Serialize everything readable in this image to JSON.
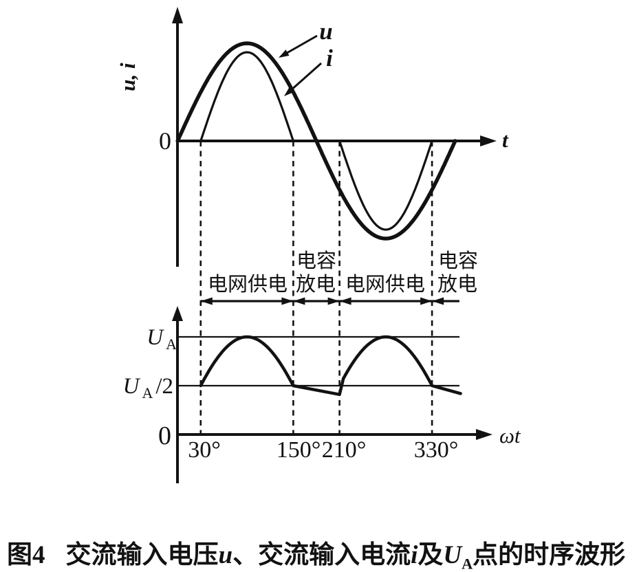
{
  "figure": {
    "background": "#ffffff",
    "ink_color": "#121212"
  },
  "top_chart": {
    "y_axis_label": "u, i",
    "origin_label": "0",
    "x_axis_label": "t",
    "curve_labels": {
      "u": "u",
      "i": "i"
    }
  },
  "regions": [
    {
      "label_line1": "电网供电",
      "label_line2": "",
      "from_deg": 30,
      "to_deg": 150,
      "arrows": "both"
    },
    {
      "label_line1": "电容",
      "label_line2": "放电",
      "from_deg": 150,
      "to_deg": 210,
      "arrows": "both"
    },
    {
      "label_line1": "电网供电",
      "label_line2": "",
      "from_deg": 210,
      "to_deg": 330,
      "arrows": "both"
    },
    {
      "label_line1": "电容",
      "label_line2": "放电",
      "from_deg": 330,
      "to_deg": 365.5,
      "arrows": "left"
    }
  ],
  "bottom_chart": {
    "ua_label": {
      "base": "U",
      "sub": "A"
    },
    "ua_half_label": {
      "base": "U",
      "sub": "A",
      "suffix": "/2"
    },
    "origin_label": "0",
    "x_axis_label": "ωt",
    "x_ticks": [
      "30°",
      "150°",
      "210°",
      "330°"
    ]
  },
  "caption": {
    "figure_number": "图4",
    "seg1": "交流输入电压",
    "sym_u": "u",
    "punct": "、",
    "seg2": "交流输入电流",
    "sym_i": "i",
    "seg3": "及",
    "sym_ua_base": "U",
    "sym_ua_sub": "A",
    "seg4": "点的时序波形"
  },
  "chart_data": [
    {
      "type": "line",
      "title": "交流输入电压u与交流输入电流i波形",
      "xlabel": "t",
      "ylabel": "u, i",
      "x_unit": "degrees",
      "grid": false,
      "series": [
        {
          "name": "u",
          "shape": "sine",
          "relative_amplitude": 1.0,
          "domain_deg": [
            0,
            361
          ],
          "zero_crossings_deg": [
            0,
            180,
            360
          ]
        },
        {
          "name": "i",
          "shape": "half-sine-pulses",
          "relative_amplitude": 0.9,
          "pulses": [
            {
              "from_deg": 30,
              "to_deg": 150,
              "sign": 1
            },
            {
              "from_deg": 210,
              "to_deg": 330,
              "sign": -1
            }
          ]
        }
      ],
      "guide_lines_deg": [
        30,
        150,
        210,
        330
      ]
    },
    {
      "type": "line",
      "title": "UA点电压波形",
      "xlabel": "ωt",
      "ylabel": "UA",
      "x_unit": "degrees",
      "grid": false,
      "y_levels": [
        {
          "label": "UA",
          "value": 1.0
        },
        {
          "label": "UA/2",
          "value": 0.5
        },
        {
          "label": "0",
          "value": 0.0
        }
      ],
      "x_ticks_deg": [
        30,
        150,
        210,
        330
      ],
      "segments": [
        {
          "kind": "sine",
          "from_deg": 30,
          "to_deg": 150,
          "start_level": 0.5,
          "peak_deg": 90,
          "peak_level": 1.0,
          "end_level": 0.5
        },
        {
          "kind": "line",
          "from_deg": 150,
          "to_deg": 210,
          "from_level": 0.5,
          "to_level": 0.41
        },
        {
          "kind": "sine",
          "from_deg": 215,
          "to_deg": 330,
          "peak_deg": 270,
          "peak_level": 1.0,
          "end_level": 0.5
        },
        {
          "kind": "line",
          "from_deg": 330,
          "to_deg": 367,
          "from_level": 0.5,
          "to_level": 0.42
        }
      ]
    }
  ]
}
